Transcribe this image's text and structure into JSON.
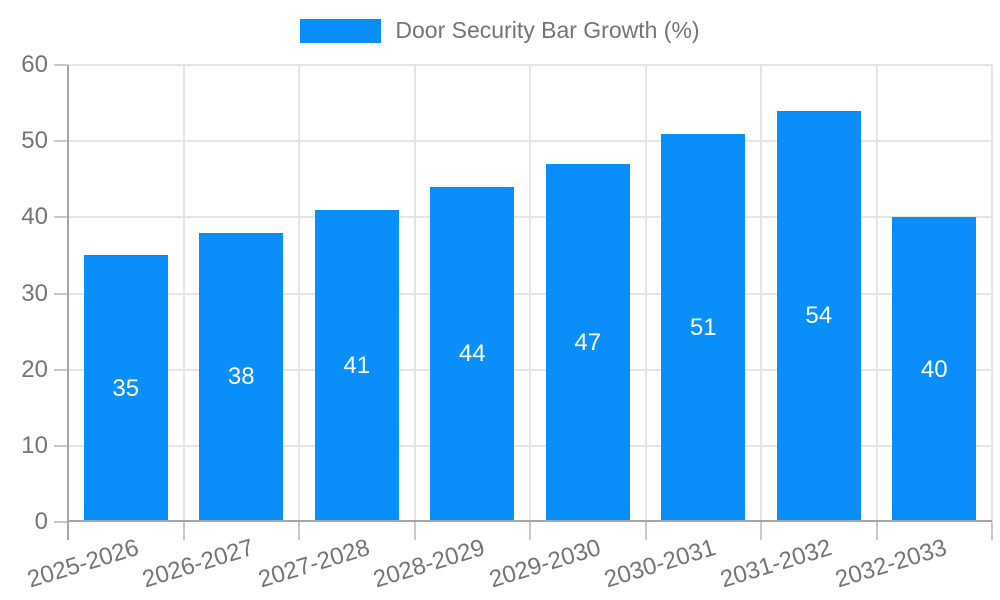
{
  "chart_data": {
    "type": "bar",
    "title": "Door Security Bar Growth (%)",
    "legend_entries": [
      "Door Security Bar Growth (%)"
    ],
    "legend_position": "top-center",
    "categories": [
      "2025-2026",
      "2026-2027",
      "2027-2028",
      "2028-2029",
      "2029-2030",
      "2030-2031",
      "2031-2032",
      "2032-2033"
    ],
    "values": [
      35,
      38,
      41,
      44,
      47,
      51,
      54,
      40
    ],
    "value_labels_shown": true,
    "xlabel": "",
    "ylabel": "",
    "ylim": [
      0,
      60
    ],
    "yticks": [
      0,
      10,
      20,
      30,
      40,
      50,
      60
    ],
    "grid": true,
    "x_label_rotation_deg": -17,
    "colors": {
      "bar": "#0a8ef9",
      "value_label": "#ffffff",
      "axis_text": "#757575",
      "gridline": "#e5e5e5",
      "axis_line": "#a6a6a6",
      "tick": "#c9c9c9",
      "background": "#ffffff"
    }
  }
}
